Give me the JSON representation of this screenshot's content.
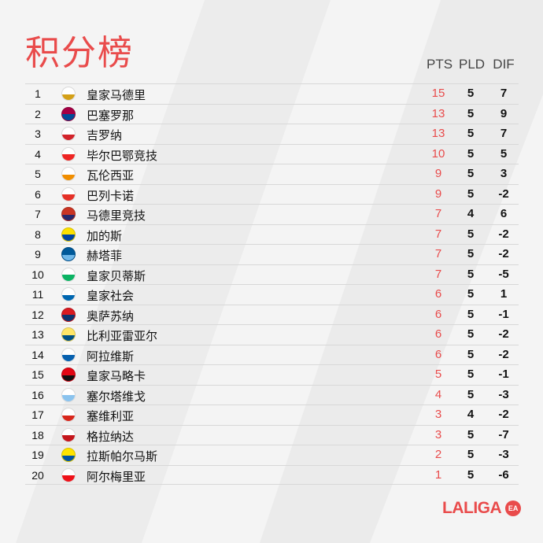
{
  "title": "积分榜",
  "columns": {
    "pts": "PTS",
    "pld": "PLD",
    "dif": "DIF"
  },
  "colors": {
    "accent": "#e94b4b"
  },
  "brand": {
    "name": "LALIGA",
    "badge": "EA"
  },
  "standings": [
    {
      "rank": "1",
      "team": "皇家马德里",
      "pts": "15",
      "pld": "5",
      "dif": "7",
      "crest": "real-madrid-crest-icon",
      "crest_colors": [
        "#ffffff",
        "#d4a017"
      ]
    },
    {
      "rank": "2",
      "team": "巴塞罗那",
      "pts": "13",
      "pld": "5",
      "dif": "9",
      "crest": "barcelona-crest-icon",
      "crest_colors": [
        "#a50044",
        "#004d98"
      ]
    },
    {
      "rank": "3",
      "team": "吉罗纳",
      "pts": "13",
      "pld": "5",
      "dif": "7",
      "crest": "girona-crest-icon",
      "crest_colors": [
        "#ffffff",
        "#d2232a"
      ]
    },
    {
      "rank": "4",
      "team": "毕尔巴鄂竞技",
      "pts": "10",
      "pld": "5",
      "dif": "5",
      "crest": "athletic-bilbao-crest-icon",
      "crest_colors": [
        "#ffffff",
        "#ee2523"
      ]
    },
    {
      "rank": "5",
      "team": "瓦伦西亚",
      "pts": "9",
      "pld": "5",
      "dif": "3",
      "crest": "valencia-crest-icon",
      "crest_colors": [
        "#ffffff",
        "#f18e00"
      ]
    },
    {
      "rank": "6",
      "team": "巴列卡诺",
      "pts": "9",
      "pld": "5",
      "dif": "-2",
      "crest": "rayo-vallecano-crest-icon",
      "crest_colors": [
        "#ffffff",
        "#e53027"
      ]
    },
    {
      "rank": "7",
      "team": "马德里竞技",
      "pts": "7",
      "pld": "4",
      "dif": "6",
      "crest": "atletico-madrid-crest-icon",
      "crest_colors": [
        "#cb3524",
        "#27296d"
      ]
    },
    {
      "rank": "8",
      "team": "加的斯",
      "pts": "7",
      "pld": "5",
      "dif": "-2",
      "crest": "cadiz-crest-icon",
      "crest_colors": [
        "#fde100",
        "#0045a5"
      ]
    },
    {
      "rank": "9",
      "team": "赫塔菲",
      "pts": "7",
      "pld": "5",
      "dif": "-2",
      "crest": "getafe-crest-icon",
      "crest_colors": [
        "#005999",
        "#6fb7e9"
      ]
    },
    {
      "rank": "10",
      "team": "皇家贝蒂斯",
      "pts": "7",
      "pld": "5",
      "dif": "-5",
      "crest": "real-betis-crest-icon",
      "crest_colors": [
        "#ffffff",
        "#0bb363"
      ]
    },
    {
      "rank": "11",
      "team": "皇家社会",
      "pts": "6",
      "pld": "5",
      "dif": "1",
      "crest": "real-sociedad-crest-icon",
      "crest_colors": [
        "#ffffff",
        "#0067b1"
      ]
    },
    {
      "rank": "12",
      "team": "奥萨苏纳",
      "pts": "6",
      "pld": "5",
      "dif": "-1",
      "crest": "osasuna-crest-icon",
      "crest_colors": [
        "#d91a21",
        "#0a346f"
      ]
    },
    {
      "rank": "13",
      "team": "比利亚雷亚尔",
      "pts": "6",
      "pld": "5",
      "dif": "-2",
      "crest": "villarreal-crest-icon",
      "crest_colors": [
        "#ffe667",
        "#005187"
      ]
    },
    {
      "rank": "14",
      "team": "阿拉维斯",
      "pts": "6",
      "pld": "5",
      "dif": "-2",
      "crest": "alaves-crest-icon",
      "crest_colors": [
        "#ffffff",
        "#0761af"
      ]
    },
    {
      "rank": "15",
      "team": "皇家马略卡",
      "pts": "5",
      "pld": "5",
      "dif": "-1",
      "crest": "mallorca-crest-icon",
      "crest_colors": [
        "#e20613",
        "#111111"
      ]
    },
    {
      "rank": "16",
      "team": "塞尔塔维戈",
      "pts": "4",
      "pld": "5",
      "dif": "-3",
      "crest": "celta-vigo-crest-icon",
      "crest_colors": [
        "#ffffff",
        "#8ac3ee"
      ]
    },
    {
      "rank": "17",
      "team": "塞维利亚",
      "pts": "3",
      "pld": "4",
      "dif": "-2",
      "crest": "sevilla-crest-icon",
      "crest_colors": [
        "#ffffff",
        "#d8271c"
      ]
    },
    {
      "rank": "18",
      "team": "格拉纳达",
      "pts": "3",
      "pld": "5",
      "dif": "-7",
      "crest": "granada-crest-icon",
      "crest_colors": [
        "#ffffff",
        "#c4161c"
      ]
    },
    {
      "rank": "19",
      "team": "拉斯帕尔马斯",
      "pts": "2",
      "pld": "5",
      "dif": "-3",
      "crest": "las-palmas-crest-icon",
      "crest_colors": [
        "#ffe400",
        "#0054a6"
      ]
    },
    {
      "rank": "20",
      "team": "阿尔梅里亚",
      "pts": "1",
      "pld": "5",
      "dif": "-6",
      "crest": "almeria-crest-icon",
      "crest_colors": [
        "#ffffff",
        "#ee1119"
      ]
    }
  ]
}
